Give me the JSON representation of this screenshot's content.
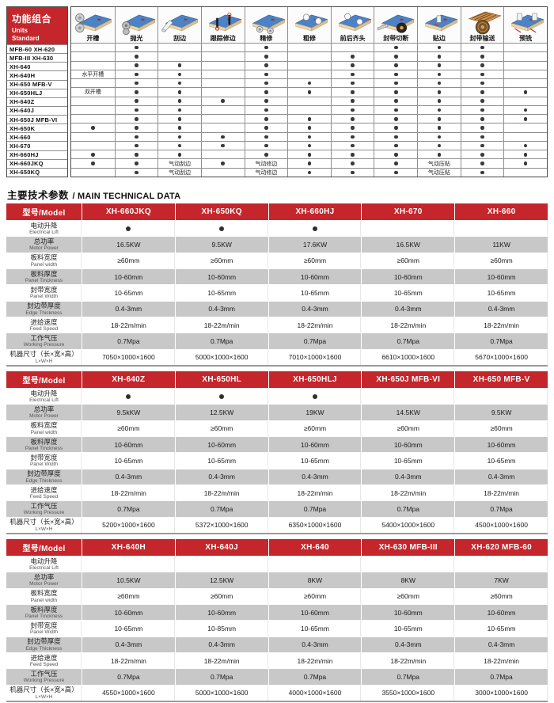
{
  "page": {
    "accent_red": "#c5262c",
    "row_gray": "#c8c8c8"
  },
  "function_matrix": {
    "title_zh": "功能组合",
    "title_en_lines": [
      "Units",
      "Standard"
    ],
    "columns": [
      {
        "label": "开槽",
        "icon": "grooving-icon"
      },
      {
        "label": "抛光",
        "icon": "polishing-icon"
      },
      {
        "label": "刮边",
        "icon": "edge-scraping-icon"
      },
      {
        "label": "跟踪修边",
        "icon": "tracking-trimming-icon"
      },
      {
        "label": "精修",
        "icon": "fine-trimming-icon"
      },
      {
        "label": "粗修",
        "icon": "rough-trimming-icon"
      },
      {
        "label": "前后齐头",
        "icon": "end-cutting-icon"
      },
      {
        "label": "封带切断",
        "icon": "tape-cutting-icon"
      },
      {
        "label": "贴边",
        "icon": "edge-pasting-icon"
      },
      {
        "label": "封带输送",
        "icon": "tape-feeding-icon"
      },
      {
        "label": "预铣",
        "icon": "pre-milling-icon"
      }
    ],
    "rows": [
      {
        "model": "MFB-60 XH-620",
        "cells": [
          "",
          "dot",
          "",
          "",
          "dot",
          "",
          "",
          "dot",
          "dot",
          "dot",
          ""
        ]
      },
      {
        "model": "MFB-III XH-630",
        "cells": [
          "",
          "dot",
          "",
          "",
          "dot",
          "",
          "dot",
          "dot",
          "dot",
          "dot",
          ""
        ]
      },
      {
        "model": "XH-640",
        "cells": [
          "",
          "dot",
          "dot",
          "",
          "dot",
          "",
          "dot",
          "dot",
          "dot",
          "dot",
          ""
        ]
      },
      {
        "model": "XH-640H",
        "cells": [
          "水平开槽",
          "dot",
          "dot",
          "",
          "dot",
          "",
          "dot",
          "dot",
          "dot",
          "dot",
          ""
        ]
      },
      {
        "model": "XH-650 MFB-V",
        "cells": [
          "",
          "dot",
          "dot",
          "",
          "dot",
          "dot",
          "dot",
          "dot",
          "dot",
          "dot",
          ""
        ]
      },
      {
        "model": "XH-650HLJ",
        "cells": [
          "双开槽",
          "dot",
          "dot",
          "",
          "dot",
          "dot",
          "dot",
          "dot",
          "dot",
          "dot",
          "dot"
        ]
      },
      {
        "model": "XH-640Z",
        "cells": [
          "",
          "dot",
          "dot",
          "dot",
          "dot",
          "",
          "dot",
          "dot",
          "dot",
          "dot",
          ""
        ]
      },
      {
        "model": "XH-640J",
        "cells": [
          "",
          "dot",
          "dot",
          "",
          "dot",
          "",
          "dot",
          "dot",
          "dot",
          "dot",
          "dot"
        ]
      },
      {
        "model": "XH-650J MFB-VI",
        "cells": [
          "",
          "dot",
          "dot",
          "",
          "dot",
          "dot",
          "dot",
          "dot",
          "dot",
          "dot",
          "dot"
        ]
      },
      {
        "model": "XH-650K",
        "cells": [
          "dot",
          "dot",
          "dot",
          "",
          "dot",
          "dot",
          "dot",
          "dot",
          "dot",
          "dot",
          ""
        ]
      },
      {
        "model": "XH-660",
        "cells": [
          "",
          "dot",
          "dot",
          "dot",
          "dot",
          "dot",
          "dot",
          "dot",
          "dot",
          "dot",
          ""
        ]
      },
      {
        "model": "XH-670",
        "cells": [
          "",
          "dot",
          "dot",
          "dot",
          "dot",
          "dot",
          "dot",
          "dot",
          "dot",
          "dot",
          "dot"
        ]
      },
      {
        "model": "XH-660HJ",
        "cells": [
          "dot",
          "dot",
          "dot",
          "",
          "dot",
          "dot",
          "dot",
          "dot",
          "dot",
          "dot",
          "dot"
        ]
      },
      {
        "model": "XH-660JKQ",
        "cells": [
          "dot",
          "dot",
          "气动刮边",
          "dot",
          "气动修边",
          "dot",
          "dot",
          "dot",
          "气动压贴",
          "dot",
          "dot"
        ]
      },
      {
        "model": "XH-650KQ",
        "cells": [
          "",
          "dot",
          "气动刮边",
          "",
          "气动修边",
          "dot",
          "dot",
          "dot",
          "气动压贴",
          "dot",
          ""
        ]
      }
    ]
  },
  "section": {
    "title_zh": "主要技术参数",
    "title_en": "/ MAIN TECHNICAL DATA"
  },
  "spec_row_labels": [
    {
      "zh": "电动升降",
      "en": "Electrical Lift"
    },
    {
      "zh": "总功率",
      "en": "Motor Power"
    },
    {
      "zh": "板料宽度",
      "en": "Panel width"
    },
    {
      "zh": "板料厚度",
      "en": "Panel Tinckness"
    },
    {
      "zh": "封带宽度",
      "en": "Panel Width"
    },
    {
      "zh": "封边带厚度",
      "en": "Edge Thickness"
    },
    {
      "zh": "进给速度",
      "en": "Feed Speed"
    },
    {
      "zh": "工作气压",
      "en": "Working Pressure"
    },
    {
      "zh": "机器尺寸（长×宽×高）",
      "en": "L×W×H"
    }
  ],
  "spec_tables": [
    {
      "header_label": "型号/Model",
      "models": [
        "XH-660JKQ",
        "XH-650KQ",
        "XH-660HJ",
        "XH-670",
        "XH-660"
      ],
      "values": [
        [
          "dot",
          "dot",
          "dot",
          "",
          ""
        ],
        [
          "16.5KW",
          "9.5KW",
          "17.6KW",
          "16.5KW",
          "11KW"
        ],
        [
          "≥60mm",
          "≥60mm",
          "≥60mm",
          "≥60mm",
          "≥60mm"
        ],
        [
          "10-60mm",
          "10-60mm",
          "10-60mm",
          "10-60mm",
          "10-60mm"
        ],
        [
          "10-65mm",
          "10-65mm",
          "10-65mm",
          "10-65mm",
          "10-65mm"
        ],
        [
          "0.4-3mm",
          "0.4-3mm",
          "0.4-3mm",
          "0.4-3mm",
          "0.4-3mm"
        ],
        [
          "18-22m/min",
          "18-22m/min",
          "18-22m/min",
          "18-22m/min",
          "18-22m/min"
        ],
        [
          "0.7Mpa",
          "0.7Mpa",
          "0.7Mpa",
          "0.7Mpa",
          "0.7Mpa"
        ],
        [
          "7050×1000×1600",
          "5000×1000×1600",
          "7010×1000×1600",
          "6610×1000×1600",
          "5670×1000×1600"
        ]
      ]
    },
    {
      "header_label": "型号/Model",
      "models": [
        "XH-640Z",
        "XH-650HL",
        "XH-650HLJ",
        "XH-650J MFB-VI",
        "XH-650 MFB-V"
      ],
      "values": [
        [
          "dot",
          "dot",
          "dot",
          "",
          ""
        ],
        [
          "9.5kKW",
          "12.5KW",
          "19KW",
          "14.5KW",
          "9.5KW"
        ],
        [
          "≥60mm",
          "≥60mm",
          "≥60mm",
          "≥60mm",
          "≥60mm"
        ],
        [
          "10-60mm",
          "10-60mm",
          "10-60mm",
          "10-60mm",
          "10-60mm"
        ],
        [
          "10-65mm",
          "10-65mm",
          "10-65mm",
          "10-65mm",
          "10-65mm"
        ],
        [
          "0.4-3mm",
          "0.4-3mm",
          "0.4-3mm",
          "0.4-3mm",
          "0.4-3mm"
        ],
        [
          "18-22m/min",
          "18-22m/min",
          "18-22m/min",
          "18-22m/min",
          "18-22m/min"
        ],
        [
          "0.7Mpa",
          "0.7Mpa",
          "0.7Mpa",
          "0.7Mpa",
          "0.7Mpa"
        ],
        [
          "5200×1000×1600",
          "5372×1000×1600",
          "6350×1000×1600",
          "5400×1000×1600",
          "4500×1000×1600"
        ]
      ]
    },
    {
      "header_label": "型号/Model",
      "models": [
        "XH-640H",
        "XH-640J",
        "XH-640",
        "XH-630 MFB-III",
        "XH-620 MFB-60"
      ],
      "values": [
        [
          "",
          "",
          "",
          "",
          ""
        ],
        [
          "10.5KW",
          "12.5KW",
          "8KW",
          "8KW",
          "7KW"
        ],
        [
          "≥60mm",
          "≥60mm",
          "≥60mm",
          "≥60mm",
          "≥60mm"
        ],
        [
          "10-60mm",
          "10-60mm",
          "10-60mm",
          "10-60mm",
          "10-60mm"
        ],
        [
          "10-65mm",
          "10-85mm",
          "10-65mm",
          "10-65mm",
          "10-65mm"
        ],
        [
          "0.4-3mm",
          "0.4-3mm",
          "0.4-3mm",
          "0.4-3mm",
          "0.4-3mm"
        ],
        [
          "18-22m/min",
          "18-22m/min",
          "18-22m/min",
          "18-22m/min",
          "18-22m/min"
        ],
        [
          "0.7Mpa",
          "0.7Mpa",
          "0.7Mpa",
          "0.7Mpa",
          "0.7Mpa"
        ],
        [
          "4550×1000×1600",
          "5000×1000×1600",
          "4000×1000×1600",
          "3550×1000×1600",
          "3000×1000×1600"
        ]
      ]
    }
  ]
}
